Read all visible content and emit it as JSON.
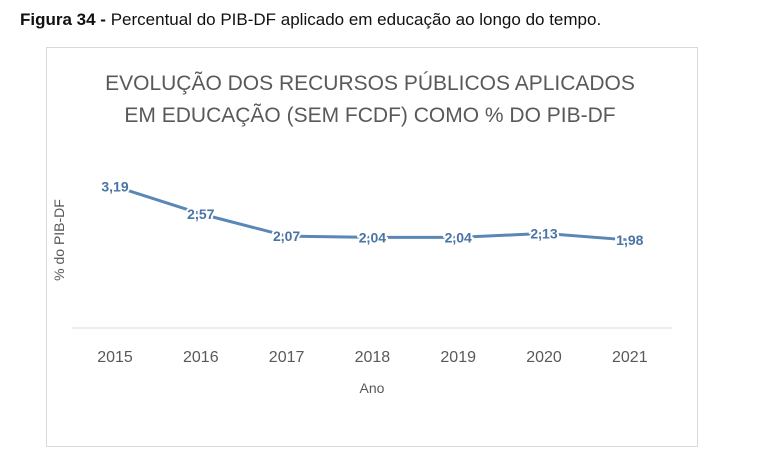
{
  "caption": {
    "figure_label": "Figura 34 -",
    "text": "Percentual do PIB-DF aplicado em educação ao longo do tempo."
  },
  "chart_data": {
    "type": "line",
    "title_lines": [
      "EVOLUÇÃO DOS RECURSOS PÚBLICOS APLICADOS",
      "EM EDUCAÇÃO (SEM FCDF) COMO % DO PIB-DF"
    ],
    "xlabel": "Ano",
    "ylabel": "% do PIB-DF",
    "categories": [
      "2015",
      "2016",
      "2017",
      "2018",
      "2019",
      "2020",
      "2021"
    ],
    "values": [
      3.19,
      2.57,
      2.07,
      2.04,
      2.04,
      2.13,
      1.98
    ],
    "value_labels": [
      "3,19",
      "2,57",
      "2,07",
      "2,04",
      "2,04",
      "2,13",
      "1,98"
    ],
    "ylim": [
      0,
      3.4
    ],
    "grid": false,
    "legend": "none",
    "line_color": "#5a87b5",
    "label_color": "#4a74a5"
  }
}
